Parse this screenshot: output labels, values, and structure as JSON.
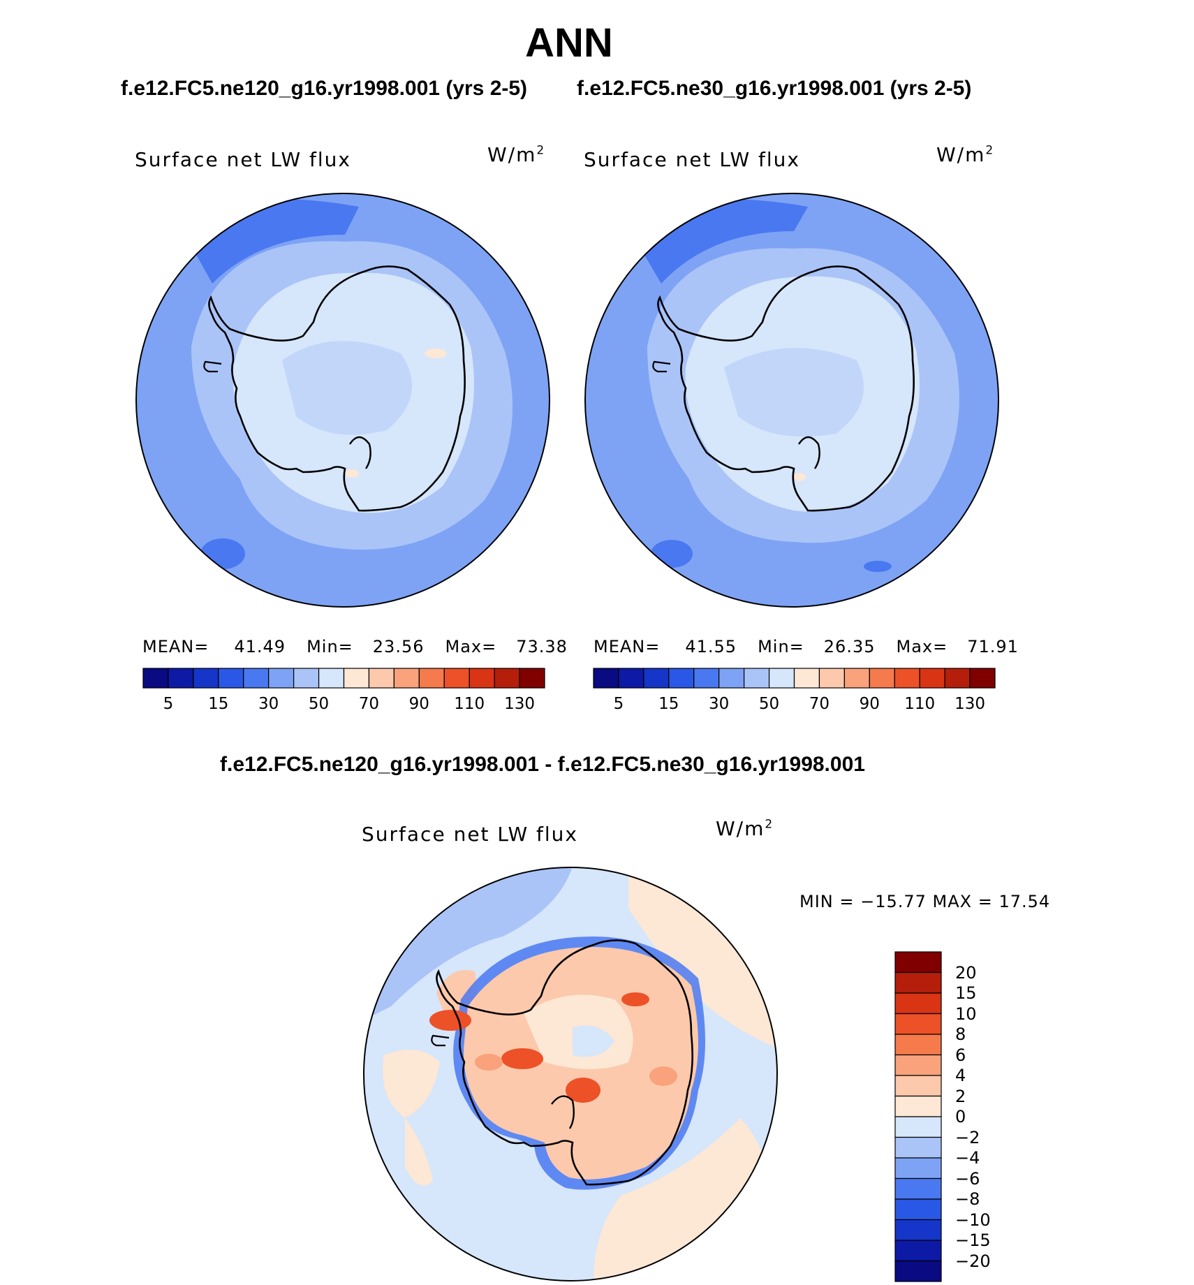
{
  "title": "ANN",
  "top_titles": {
    "left": "f.e12.FC5.ne120_g16.yr1998.001 (yrs 2-5)",
    "right": "f.e12.FC5.ne30_g16.yr1998.001 (yrs 2-5)"
  },
  "panels": [
    {
      "label": "Surface net LW flux",
      "units": "W/m",
      "units_sup": "2",
      "mean_label": "MEAN=",
      "mean": "41.49",
      "min_label": "Min=",
      "min": "23.56",
      "max_label": "Max=",
      "max": "73.38"
    },
    {
      "label": "Surface net LW flux",
      "units": "W/m",
      "units_sup": "2",
      "mean_label": "MEAN=",
      "mean": "41.55",
      "min_label": "Min=",
      "min": "26.35",
      "max_label": "Max=",
      "max": "71.91"
    }
  ],
  "colorbar_top": {
    "colors": [
      "#0a0a82",
      "#0d1aa6",
      "#1536c8",
      "#2a58e6",
      "#4a78f0",
      "#7ea3f5",
      "#aac4f8",
      "#d6e6fb",
      "#fde7d5",
      "#fcc9ac",
      "#f9a27b",
      "#f57a4c",
      "#ec5127",
      "#d93414",
      "#b41e0a",
      "#800000"
    ],
    "ticks": [
      "5",
      "15",
      "30",
      "50",
      "70",
      "90",
      "110",
      "130"
    ]
  },
  "diff": {
    "title": "f.e12.FC5.ne120_g16.yr1998.001 - f.e12.FC5.ne30_g16.yr1998.001",
    "label": "Surface net LW flux",
    "units": "W/m",
    "units_sup": "2",
    "minmax": "MIN = −15.77 MAX =   17.54",
    "colors": [
      "#0a0a82",
      "#0d1aa6",
      "#1536c8",
      "#2a58e6",
      "#4a78f0",
      "#7ea3f5",
      "#aac4f8",
      "#d6e6fb",
      "#fde7d5",
      "#fcc9ac",
      "#f9a27b",
      "#f57a4c",
      "#ec5127",
      "#d93414",
      "#b41e0a",
      "#800000"
    ],
    "ticks": [
      "20",
      "15",
      "10",
      "8",
      "6",
      "4",
      "2",
      "0",
      "−2",
      "−4",
      "−6",
      "−8",
      "−10",
      "−15",
      "−20"
    ]
  },
  "map_colors": {
    "ocean_mid": "#7ea3f5",
    "ocean_deep": "#4a78f0",
    "near_coast": "#aac4f8",
    "land_light": "#d6e6fb",
    "positive_light": "#fde7d5",
    "positive_mid": "#f9a27b",
    "positive_strong": "#ec5127",
    "coast": "#000000"
  }
}
